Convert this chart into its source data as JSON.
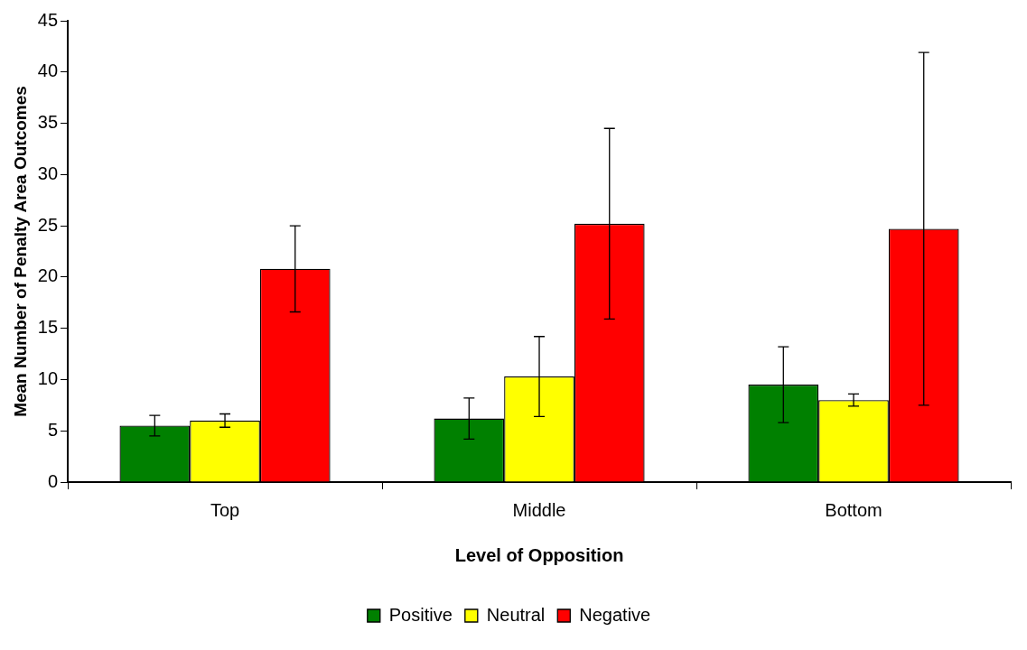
{
  "chart_data": {
    "type": "bar",
    "xlabel": "Level of Opposition",
    "ylabel": "Mean Number of Penalty Area Outcomes",
    "categories": [
      "Top",
      "Middle",
      "Bottom"
    ],
    "series": [
      {
        "name": "Positive",
        "color": "#008000",
        "values": [
          5.5,
          6.2,
          9.5
        ],
        "errors": [
          1.0,
          2.0,
          3.7
        ]
      },
      {
        "name": "Neutral",
        "color": "#ffff00",
        "values": [
          6.0,
          10.3,
          8.0
        ],
        "errors": [
          0.65,
          3.9,
          0.6
        ]
      },
      {
        "name": "Negative",
        "color": "#ff0000",
        "values": [
          20.8,
          25.2,
          24.7
        ],
        "errors": [
          4.2,
          9.3,
          17.2
        ]
      }
    ],
    "ylim": [
      0,
      45
    ],
    "yticks": [
      0,
      5,
      10,
      15,
      20,
      25,
      30,
      35,
      40,
      45
    ],
    "grid": false,
    "legend": "bottom"
  }
}
